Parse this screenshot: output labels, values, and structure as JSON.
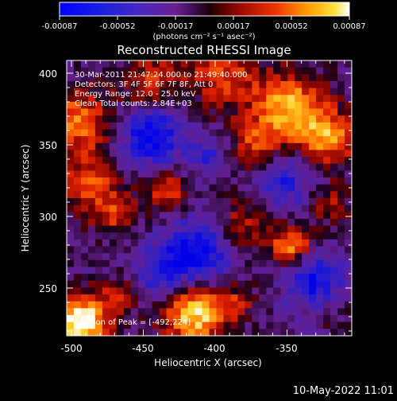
{
  "window": {
    "title": "Reconstructed RHESSI Image"
  },
  "colorbar": {
    "tick_labels": [
      "-0.00087",
      "-0.00052",
      "-0.00017",
      "0.00017",
      "0.00052",
      "0.00087"
    ],
    "unit_label": "(photons cm⁻² s⁻¹ asec⁻²)",
    "colors": [
      "#000000",
      "#0000c8",
      "#3a1ed2",
      "#6c2aa8",
      "#4a1060",
      "#000000",
      "#700000",
      "#d82000",
      "#ff8000",
      "#ffd000",
      "#ffffff"
    ]
  },
  "image": {
    "title": "Reconstructed RHESSI Image",
    "overlay_lines": [
      "30-Mar-2011 21:47:24.000 to 21:49:40.000",
      "Detectors: 3F 4F 5F 6F 7F 8F, Att 0",
      "Energy Range: 12.0 - 25.0 keV",
      "Clean    Total counts: 2.84E+03"
    ],
    "peak_label": "Position of Peak = [-492,224]"
  },
  "axes": {
    "xlabel": "Heliocentric X (arcsec)",
    "ylabel": "Heliocentric Y (arcsec)",
    "xticks": [
      "-500",
      "-450",
      "-400",
      "-350"
    ],
    "yticks": [
      "250",
      "300",
      "350",
      "400"
    ]
  },
  "footer": {
    "timestamp": "10-May-2022 11:01"
  }
}
